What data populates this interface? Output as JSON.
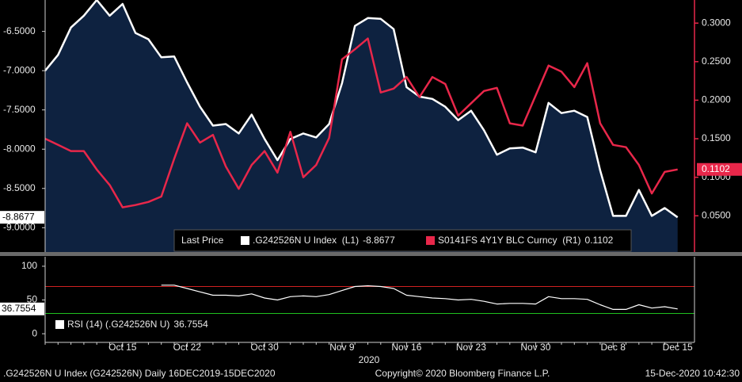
{
  "chart_data": [
    {
      "type": "line",
      "categories": [
        null,
        null,
        null,
        null,
        null,
        null,
        "Oct 15",
        null,
        null,
        null,
        null,
        "Oct 22",
        null,
        null,
        null,
        null,
        null,
        "Oct 30",
        null,
        null,
        null,
        null,
        null,
        "Nov 9",
        null,
        null,
        null,
        null,
        "Nov 16",
        null,
        null,
        null,
        null,
        "Nov 23",
        null,
        null,
        null,
        null,
        "Nov 30",
        null,
        null,
        null,
        null,
        null,
        "Dec 8",
        null,
        null,
        null,
        null,
        "Dec 15"
      ],
      "xlabel": "2020",
      "legend_title": "Last Price",
      "ylim": [
        -9.31,
        -6.1
      ],
      "yticks": [
        {
          "value": -6.5,
          "label": "-6.5000"
        },
        {
          "value": -7.0,
          "label": "-7.0000"
        },
        {
          "value": -7.5,
          "label": "-7.5000"
        },
        {
          "value": -8.0,
          "label": "-8.0000"
        },
        {
          "value": -8.5,
          "label": "-8.5000"
        },
        {
          "value": -9.0,
          "label": "-9.0000"
        }
      ],
      "y2lim": [
        0.003,
        0.33
      ],
      "y2ticks": [
        {
          "value": 0.3,
          "label": "0.3000"
        },
        {
          "value": 0.25,
          "label": "0.2500"
        },
        {
          "value": 0.2,
          "label": "0.2000"
        },
        {
          "value": 0.15,
          "label": "0.1500"
        },
        {
          "value": 0.1,
          "label": "0.1000"
        },
        {
          "value": 0.05,
          "label": "0.0500"
        }
      ],
      "series": [
        {
          "name": ".G242526N U Index  (L1)",
          "color": "#ffffff",
          "fill": "#0e2240",
          "style": "area",
          "values": [
            -7.0,
            -6.8,
            -6.45,
            -6.3,
            -6.1,
            -6.3,
            -6.15,
            -6.52,
            -6.6,
            -6.83,
            -6.82,
            -7.15,
            -7.46,
            -7.7,
            -7.68,
            -7.8,
            -7.56,
            -7.87,
            -8.14,
            -7.87,
            -7.8,
            -7.85,
            -7.68,
            -7.16,
            -6.43,
            -6.33,
            -6.34,
            -6.47,
            -7.21,
            -7.33,
            -7.36,
            -7.46,
            -7.63,
            -7.51,
            -7.76,
            -8.07,
            -7.99,
            -7.98,
            -8.04,
            -7.41,
            -7.54,
            -7.51,
            -7.59,
            -8.27,
            -8.85,
            -8.85,
            -8.52,
            -8.85,
            -8.75,
            -8.8677
          ]
        },
        {
          "name": "S0141FS 4Y1Y BLC Curncy  (R1)",
          "color": "#e8274a",
          "axis": "y2",
          "values": [
            0.15,
            0.142,
            0.134,
            0.134,
            0.11,
            0.09,
            0.061,
            0.064,
            0.068,
            0.075,
            0.124,
            0.17,
            0.145,
            0.155,
            0.114,
            0.085,
            0.116,
            0.134,
            0.106,
            0.159,
            0.1,
            0.116,
            0.151,
            0.253,
            0.266,
            0.28,
            0.21,
            0.215,
            0.23,
            0.204,
            0.23,
            0.221,
            0.18,
            0.196,
            0.212,
            0.216,
            0.17,
            0.167,
            0.206,
            0.245,
            0.237,
            0.217,
            0.248,
            0.17,
            0.142,
            0.139,
            0.116,
            0.079,
            0.107,
            0.1102
          ]
        }
      ]
    },
    {
      "type": "line",
      "ylim": [
        -12.8,
        114
      ],
      "yticks": [
        100,
        50,
        0
      ],
      "ref_lines": [
        {
          "value": 70,
          "color": "#d02020"
        },
        {
          "value": 30,
          "color": "#20c020"
        }
      ],
      "series": [
        {
          "name": "RSI (14) (.G242526N U)",
          "color": "#ffffff",
          "values": [
            null,
            null,
            null,
            null,
            null,
            null,
            null,
            null,
            null,
            72,
            72,
            67,
            62,
            57,
            57,
            56,
            59,
            53,
            50,
            55,
            56,
            55,
            58,
            64,
            70,
            71,
            70,
            67,
            57,
            55,
            53,
            52,
            50,
            51,
            48,
            44,
            45,
            45,
            44,
            55,
            52,
            52,
            51,
            43,
            36,
            36,
            43,
            38,
            40,
            36.7554
          ]
        }
      ]
    }
  ],
  "footer": {
    "left": ".G242526N U Index (G242526N)  Daily 16DEC2019-15DEC2020",
    "center": "Copyright© 2020 Bloomberg Finance L.P.",
    "right": "15-Dec-2020 10:42:30"
  }
}
